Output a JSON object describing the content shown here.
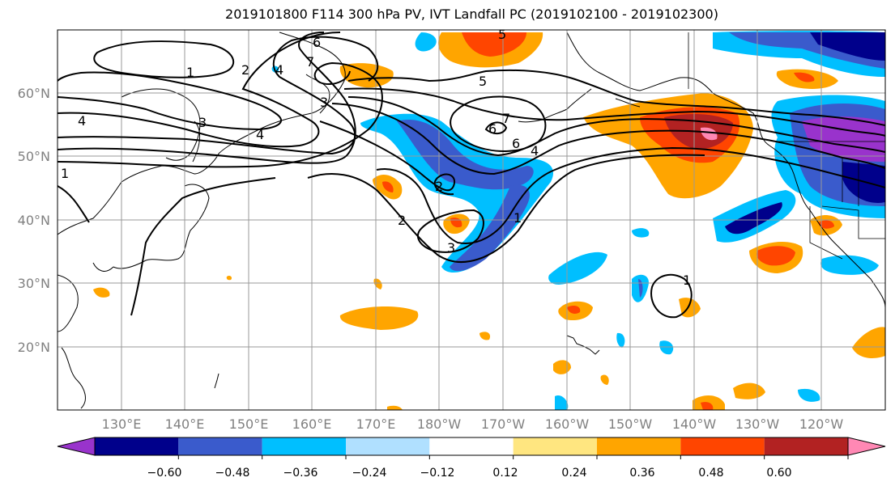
{
  "title": "2019101800 F114 300 hPa PV, IVT Landfall PC (2019102100 - 2019102300)",
  "lat_labels": [
    "60°N",
    "50°N",
    "40°N",
    "30°N",
    "20°N"
  ],
  "lon_labels": [
    "130°E",
    "140°E",
    "150°E",
    "160°E",
    "170°E",
    "180°W",
    "170°W",
    "160°W",
    "150°W",
    "140°W",
    "130°W",
    "120°W"
  ],
  "colorbar": {
    "ticks": [
      "−0.60",
      "−0.48",
      "−0.36",
      "−0.24",
      "−0.12",
      "0.12",
      "0.24",
      "0.36",
      "0.48",
      "0.60"
    ],
    "colors": [
      "#9933cc",
      "#00008b",
      "#3a5bcc",
      "#00bfff",
      "#b0e0ff",
      "#ffffff",
      "#ffe680",
      "#ffa500",
      "#ff4500",
      "#b22222",
      "#ff88b4"
    ]
  },
  "contour_labels": [
    "1",
    "2",
    "3",
    "4",
    "5",
    "6",
    "7",
    "4",
    "3",
    "2",
    "1",
    "6",
    "5",
    "4",
    "3",
    "2",
    "1",
    "6",
    "7",
    "4",
    "1"
  ],
  "colors": {
    "land_outline": "#000000",
    "grid": "#999999",
    "contour": "#000000"
  }
}
